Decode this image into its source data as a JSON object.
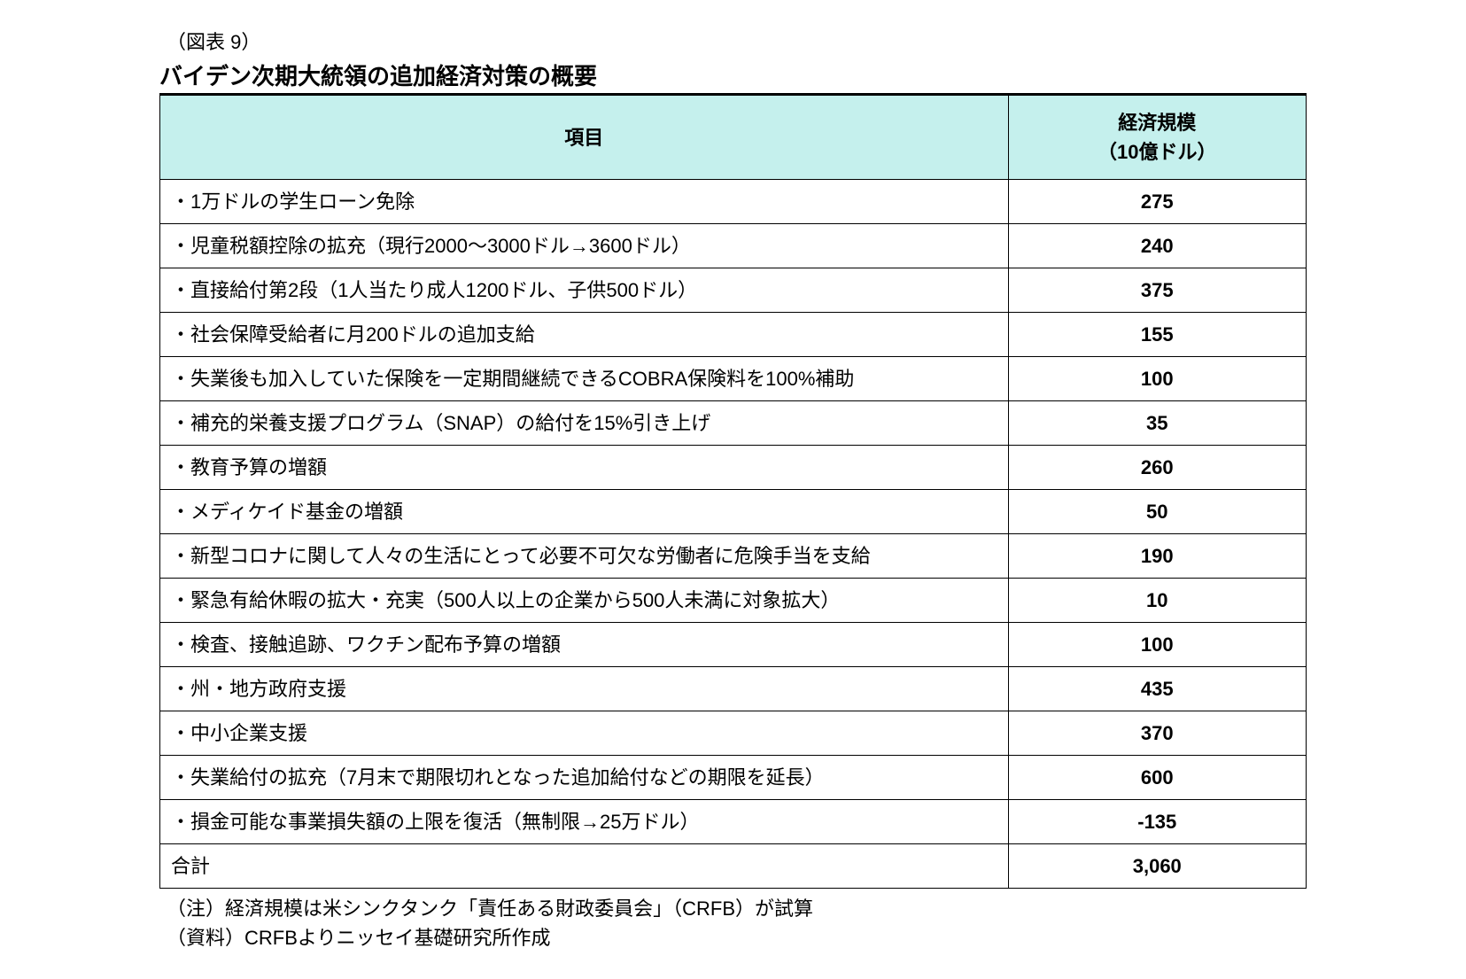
{
  "figure_number": "（図表 9）",
  "title": "バイデン次期大統領の追加経済対策の概要",
  "table": {
    "type": "table",
    "header": {
      "item": "項目",
      "value": "経済規模\n（10億ドル）"
    },
    "header_bg_color": "#c5f0ed",
    "border_color": "#000000",
    "background_color": "#ffffff",
    "col_widths": [
      0.74,
      0.26
    ],
    "font_size": 22,
    "header_font_weight": "bold",
    "rows": [
      {
        "item": "・1万ドルの学生ローン免除",
        "value": "275"
      },
      {
        "item": "・児童税額控除の拡充（現行2000～3000ドル→3600ドル）",
        "value": "240"
      },
      {
        "item": "・直接給付第2段（1人当たり成人1200ドル、子供500ドル）",
        "value": "375"
      },
      {
        "item": "・社会保障受給者に月200ドルの追加支給",
        "value": "155"
      },
      {
        "item": "・失業後も加入していた保険を一定期間継続できるCOBRA保険料を100%補助",
        "value": "100"
      },
      {
        "item": "・補充的栄養支援プログラム（SNAP）の給付を15%引き上げ",
        "value": "35"
      },
      {
        "item": "・教育予算の増額",
        "value": "260"
      },
      {
        "item": "・メディケイド基金の増額",
        "value": "50"
      },
      {
        "item": "・新型コロナに関して人々の生活にとって必要不可欠な労働者に危険手当を支給",
        "value": "190"
      },
      {
        "item": "・緊急有給休暇の拡大・充実（500人以上の企業から500人未満に対象拡大）",
        "value": "10"
      },
      {
        "item": "・検査、接触追跡、ワクチン配布予算の増額",
        "value": "100"
      },
      {
        "item": "・州・地方政府支援",
        "value": "435"
      },
      {
        "item": "・中小企業支援",
        "value": "370"
      },
      {
        "item": "・失業給付の拡充（7月末で期限切れとなった追加給付などの期限を延長）",
        "value": "600"
      },
      {
        "item": "・損金可能な事業損失額の上限を復活（無制限→25万ドル）",
        "value": "-135"
      }
    ],
    "total": {
      "item": "合計",
      "value": "3,060"
    }
  },
  "footnotes": {
    "note": "（注）経済規模は米シンクタンク「責任ある財政委員会」（CRFB）が試算",
    "source": "（資料）CRFBよりニッセイ基礎研究所作成"
  }
}
